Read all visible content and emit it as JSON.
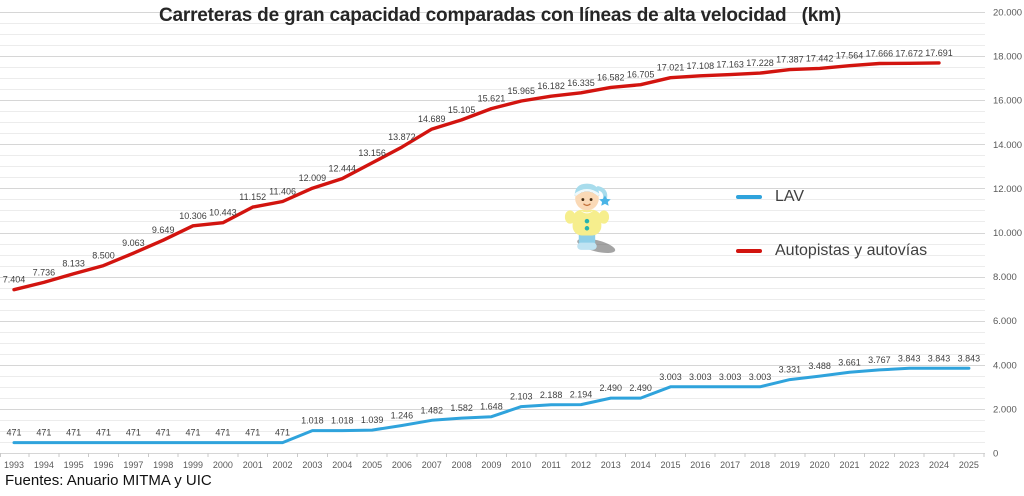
{
  "title": "Carreteras de gran capacidad comparadas con líneas de alta velocidad   (km)",
  "footer": "Fuentes: Anuario MITMA y UIC",
  "legend": [
    {
      "label": "LAV",
      "color": "#2fa3dc"
    },
    {
      "label": "Autopistas y autovías",
      "color": "#d2140f"
    }
  ],
  "mascot": {
    "name": "toy-baby-figurine"
  },
  "chart_data": {
    "type": "line",
    "title": "Carreteras de gran capacidad comparadas con líneas de alta velocidad (km)",
    "x": [
      1993,
      1994,
      1995,
      1996,
      1997,
      1998,
      1999,
      2000,
      2001,
      2002,
      2003,
      2004,
      2005,
      2006,
      2007,
      2008,
      2009,
      2010,
      2011,
      2012,
      2013,
      2014,
      2015,
      2016,
      2017,
      2018,
      2019,
      2020,
      2021,
      2022,
      2023,
      2024,
      2025
    ],
    "series": [
      {
        "name": "LAV",
        "color": "#2fa3dc",
        "width": 3,
        "values": [
          471,
          471,
          471,
          471,
          471,
          471,
          471,
          471,
          471,
          471,
          1018,
          1018,
          1039,
          1246,
          1482,
          1582,
          1648,
          2103,
          2188,
          2194,
          2490,
          2490,
          3003,
          3003,
          3003,
          3003,
          3331,
          3488,
          3661,
          3767,
          3843,
          3843,
          3843
        ]
      },
      {
        "name": "Autopistas y autovías",
        "color": "#d2140f",
        "width": 3.4,
        "values": [
          7404,
          7736,
          8133,
          8500,
          9063,
          9649,
          10306,
          10443,
          11152,
          11406,
          12009,
          12444,
          13156,
          13872,
          14689,
          15105,
          15621,
          15965,
          16182,
          16335,
          16582,
          16705,
          17021,
          17108,
          17163,
          17228,
          17387,
          17442,
          17564,
          17666,
          17672,
          17691,
          null
        ]
      }
    ],
    "ylim": [
      0,
      20000
    ],
    "y_major_step": 2000,
    "y_minor_step": 500,
    "y_tick_labels": [
      "0",
      "2.000",
      "4.000",
      "6.000",
      "8.000",
      "10.000",
      "12.000",
      "14.000",
      "16.000",
      "18.000",
      "20.000"
    ],
    "grid": "horizontal",
    "legend_position": "center-right",
    "data_labels": true,
    "number_format": "thousands-dot"
  }
}
